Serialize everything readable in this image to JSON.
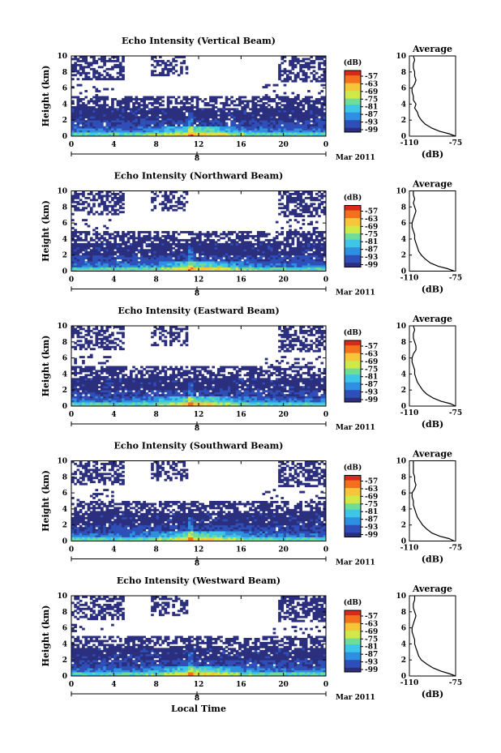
{
  "figure": {
    "xlabel": "Local Time"
  },
  "color_bar": {
    "unit_label": "(dB)",
    "tick_labels": [
      "-57",
      "-63",
      "-69",
      "-75",
      "-81",
      "-87",
      "-93",
      "-99"
    ],
    "colors": [
      "#2b2f7e",
      "#2f4fb8",
      "#2f8fe0",
      "#3fc6e6",
      "#6fdc9a",
      "#cfe84a",
      "#f6c53a",
      "#f2701e",
      "#d62a1a"
    ]
  },
  "chart_data": [
    {
      "type": "heatmap",
      "title": "Echo Intensity (Vertical Beam)",
      "ylabel": "Height (km)",
      "ylim": [
        0,
        10
      ],
      "yticks": [
        "0",
        "2",
        "4",
        "6",
        "8",
        "10"
      ],
      "xlim": [
        0,
        24
      ],
      "xticks": [
        "0",
        "4",
        "8",
        "12",
        "16",
        "20",
        "0"
      ],
      "date_tick": "8",
      "date_label": "Mar 2011",
      "profile": {
        "title": "Average",
        "xlabel": "(dB)",
        "xticks": [
          "-110",
          "-75"
        ],
        "xlim": [
          -110,
          -75
        ],
        "ylim": [
          0,
          10
        ],
        "yticks": [
          "0",
          "2",
          "4",
          "6",
          "8",
          "10"
        ],
        "points": [
          [
            -75,
            0
          ],
          [
            -80,
            0.3
          ],
          [
            -87,
            0.6
          ],
          [
            -93,
            1
          ],
          [
            -98,
            1.5
          ],
          [
            -101,
            2
          ],
          [
            -103,
            2.5
          ],
          [
            -104,
            3
          ],
          [
            -106,
            3.5
          ],
          [
            -105,
            4
          ],
          [
            -107,
            4.5
          ],
          [
            -107,
            5
          ],
          [
            -108,
            5.5
          ],
          [
            -108,
            6
          ],
          [
            -106,
            6.5
          ],
          [
            -105,
            7
          ],
          [
            -106,
            7.5
          ],
          [
            -106,
            8
          ],
          [
            -107,
            8.5
          ],
          [
            -107,
            9
          ],
          [
            -106,
            9.5
          ],
          [
            -107,
            10
          ]
        ]
      }
    },
    {
      "type": "heatmap",
      "title": "Echo Intensity (Northward Beam)",
      "ylabel": "Height (km)",
      "ylim": [
        0,
        10
      ],
      "yticks": [
        "0",
        "2",
        "4",
        "6",
        "8",
        "10"
      ],
      "xlim": [
        0,
        24
      ],
      "xticks": [
        "0",
        "4",
        "8",
        "12",
        "16",
        "20",
        "0"
      ],
      "date_tick": "8",
      "date_label": "Mar 2011",
      "profile": {
        "title": "Average",
        "xlabel": "(dB)",
        "xticks": [
          "-110",
          "-75"
        ],
        "xlim": [
          -110,
          -75
        ],
        "ylim": [
          0,
          10
        ],
        "yticks": [
          "0",
          "2",
          "4",
          "6",
          "8",
          "10"
        ],
        "points": [
          [
            -76,
            0
          ],
          [
            -81,
            0.3
          ],
          [
            -88,
            0.6
          ],
          [
            -94,
            1
          ],
          [
            -98,
            1.5
          ],
          [
            -101,
            2
          ],
          [
            -103,
            2.5
          ],
          [
            -104,
            3
          ],
          [
            -105,
            3.5
          ],
          [
            -106,
            4
          ],
          [
            -106,
            4.5
          ],
          [
            -107,
            5
          ],
          [
            -108,
            5.5
          ],
          [
            -108,
            6
          ],
          [
            -107,
            6.5
          ],
          [
            -106,
            7
          ],
          [
            -105,
            7.5
          ],
          [
            -106,
            8
          ],
          [
            -107,
            8.5
          ],
          [
            -106,
            9
          ],
          [
            -107,
            9.5
          ],
          [
            -107,
            10
          ]
        ]
      }
    },
    {
      "type": "heatmap",
      "title": "Echo Intensity (Eastward Beam)",
      "ylabel": "Height (km)",
      "ylim": [
        0,
        10
      ],
      "yticks": [
        "0",
        "2",
        "4",
        "6",
        "8",
        "10"
      ],
      "xlim": [
        0,
        24
      ],
      "xticks": [
        "0",
        "4",
        "8",
        "12",
        "16",
        "20",
        "0"
      ],
      "date_tick": "8",
      "date_label": "Mar 2011",
      "profile": {
        "title": "Average",
        "xlabel": "(dB)",
        "xticks": [
          "-110",
          "-75"
        ],
        "xlim": [
          -110,
          -75
        ],
        "ylim": [
          0,
          10
        ],
        "yticks": [
          "0",
          "2",
          "4",
          "6",
          "8",
          "10"
        ],
        "points": [
          [
            -75,
            0
          ],
          [
            -79,
            0.3
          ],
          [
            -86,
            0.6
          ],
          [
            -92,
            1
          ],
          [
            -97,
            1.5
          ],
          [
            -100,
            2
          ],
          [
            -102,
            2.5
          ],
          [
            -104,
            3
          ],
          [
            -105,
            3.5
          ],
          [
            -106,
            4
          ],
          [
            -106,
            4.5
          ],
          [
            -107,
            5
          ],
          [
            -108,
            5.5
          ],
          [
            -108,
            6
          ],
          [
            -107,
            6.5
          ],
          [
            -105,
            7
          ],
          [
            -105,
            7.5
          ],
          [
            -106,
            8
          ],
          [
            -107,
            8.5
          ],
          [
            -107,
            9
          ],
          [
            -106,
            9.5
          ],
          [
            -107,
            10
          ]
        ]
      }
    },
    {
      "type": "heatmap",
      "title": "Echo Intensity (Southward Beam)",
      "ylabel": "Height (km)",
      "ylim": [
        0,
        10
      ],
      "yticks": [
        "0",
        "2",
        "4",
        "6",
        "8",
        "10"
      ],
      "xlim": [
        0,
        24
      ],
      "xticks": [
        "0",
        "4",
        "8",
        "12",
        "16",
        "20",
        "0"
      ],
      "date_tick": "8",
      "date_label": "Mar 2011",
      "profile": {
        "title": "Average",
        "xlabel": "(dB)",
        "xticks": [
          "-110",
          "-75"
        ],
        "xlim": [
          -110,
          -75
        ],
        "ylim": [
          0,
          10
        ],
        "yticks": [
          "0",
          "2",
          "4",
          "6",
          "8",
          "10"
        ],
        "points": [
          [
            -76,
            0
          ],
          [
            -80,
            0.3
          ],
          [
            -87,
            0.6
          ],
          [
            -93,
            1
          ],
          [
            -97,
            1.5
          ],
          [
            -100,
            2
          ],
          [
            -102,
            2.5
          ],
          [
            -104,
            3
          ],
          [
            -105,
            3.5
          ],
          [
            -106,
            4
          ],
          [
            -107,
            4.5
          ],
          [
            -107,
            5
          ],
          [
            -108,
            5.5
          ],
          [
            -108,
            6
          ],
          [
            -106,
            6.5
          ],
          [
            -105,
            7
          ],
          [
            -106,
            7.5
          ],
          [
            -106,
            8
          ],
          [
            -107,
            8.5
          ],
          [
            -107,
            9
          ],
          [
            -107,
            9.5
          ],
          [
            -107,
            10
          ]
        ]
      }
    },
    {
      "type": "heatmap",
      "title": "Echo Intensity (Westward Beam)",
      "ylabel": "Height (km)",
      "ylim": [
        0,
        10
      ],
      "yticks": [
        "0",
        "2",
        "4",
        "6",
        "8",
        "10"
      ],
      "xlim": [
        0,
        24
      ],
      "xticks": [
        "0",
        "4",
        "8",
        "12",
        "16",
        "20",
        "0"
      ],
      "date_tick": "8",
      "date_label": "Mar 2011",
      "profile": {
        "title": "Average",
        "xlabel": "(dB)",
        "xticks": [
          "-110",
          "-75"
        ],
        "xlim": [
          -110,
          -75
        ],
        "ylim": [
          0,
          10
        ],
        "yticks": [
          "0",
          "2",
          "4",
          "6",
          "8",
          "10"
        ],
        "points": [
          [
            -75,
            0
          ],
          [
            -80,
            0.3
          ],
          [
            -86,
            0.6
          ],
          [
            -92,
            1
          ],
          [
            -97,
            1.5
          ],
          [
            -101,
            2
          ],
          [
            -103,
            2.5
          ],
          [
            -104,
            3
          ],
          [
            -105,
            3.5
          ],
          [
            -106,
            4
          ],
          [
            -106,
            4.5
          ],
          [
            -107,
            5
          ],
          [
            -108,
            5.5
          ],
          [
            -108,
            6
          ],
          [
            -107,
            6.5
          ],
          [
            -106,
            7
          ],
          [
            -105,
            7.5
          ],
          [
            -106,
            8
          ],
          [
            -107,
            8.5
          ],
          [
            -107,
            9
          ],
          [
            -106,
            9.5
          ],
          [
            -106,
            10
          ]
        ]
      }
    }
  ]
}
